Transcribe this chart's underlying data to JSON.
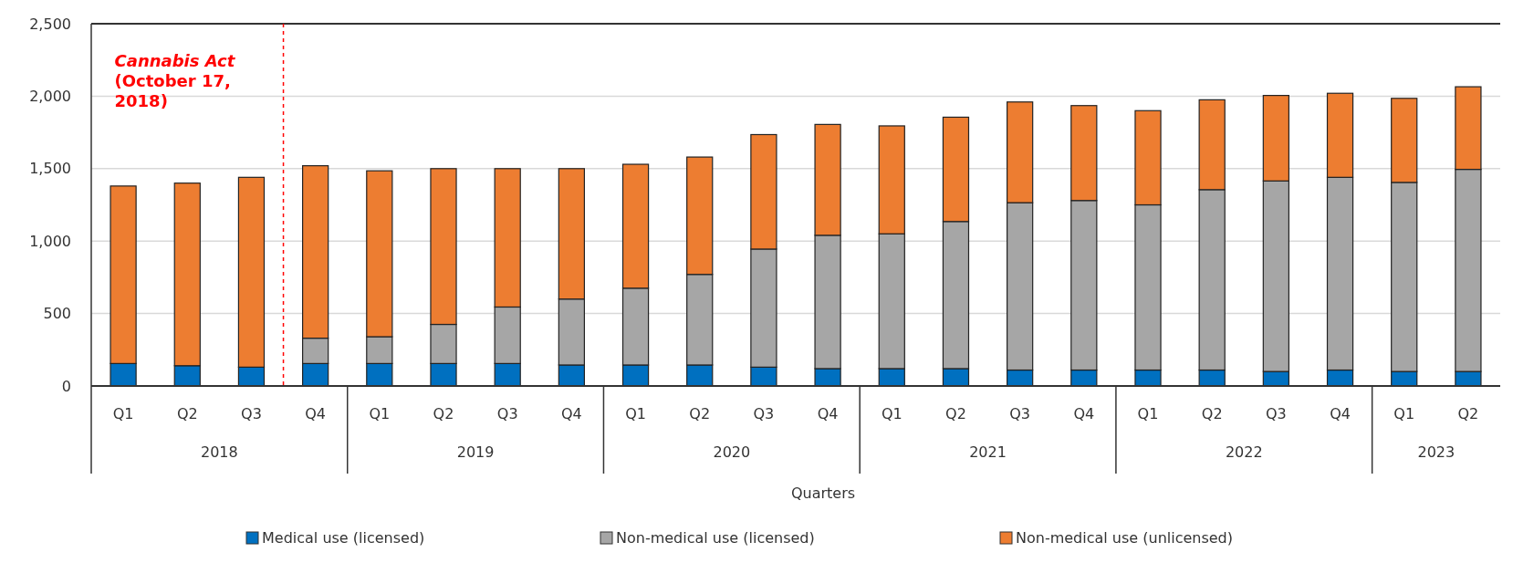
{
  "chart_data": {
    "type": "bar",
    "stacked": true,
    "xlabel": "Quarters",
    "categories": [
      "Q1",
      "Q2",
      "Q3",
      "Q4",
      "Q1",
      "Q2",
      "Q3",
      "Q4",
      "Q1",
      "Q2",
      "Q3",
      "Q4",
      "Q1",
      "Q2",
      "Q3",
      "Q4",
      "Q1",
      "Q2",
      "Q3",
      "Q4",
      "Q1",
      "Q2"
    ],
    "series": [
      {
        "name": "Medical use (licensed)",
        "color": "#0070c0",
        "values": [
          155,
          140,
          130,
          155,
          155,
          155,
          155,
          145,
          145,
          145,
          130,
          120,
          120,
          120,
          110,
          110,
          110,
          110,
          100,
          110,
          100,
          100
        ]
      },
      {
        "name": "Non-medical use (licensed)",
        "color": "#a6a6a6",
        "values": [
          0,
          0,
          0,
          175,
          185,
          270,
          390,
          455,
          530,
          625,
          815,
          920,
          930,
          1015,
          1155,
          1170,
          1140,
          1245,
          1315,
          1330,
          1305,
          1395
        ]
      },
      {
        "name": "Non-medical use (unlicensed)",
        "color": "#ed7d31",
        "values": [
          1225,
          1260,
          1310,
          1190,
          1145,
          1075,
          955,
          900,
          855,
          810,
          790,
          765,
          745,
          720,
          695,
          655,
          650,
          620,
          590,
          580,
          580,
          570
        ]
      }
    ],
    "ylim": [
      0,
      2500
    ],
    "yticks": [
      0,
      500,
      {
        "value": 1000,
        "label": "1,000"
      },
      {
        "value": 1500,
        "label": "1,500"
      },
      {
        "value": 2000,
        "label": "2,000"
      },
      {
        "value": 2500,
        "label": "2,500"
      }
    ],
    "grid": "y",
    "legend": "bottom",
    "annotations": [
      "2018",
      "2019",
      "2020",
      "2021",
      "2022",
      "2023"
    ],
    "ref_lines": [
      {
        "axis": "x",
        "value": "Q4",
        "label": "Cannabis Act\n(October 17,\n2018)",
        "color": "#ff0000",
        "line_style": "dashed"
      }
    ]
  }
}
